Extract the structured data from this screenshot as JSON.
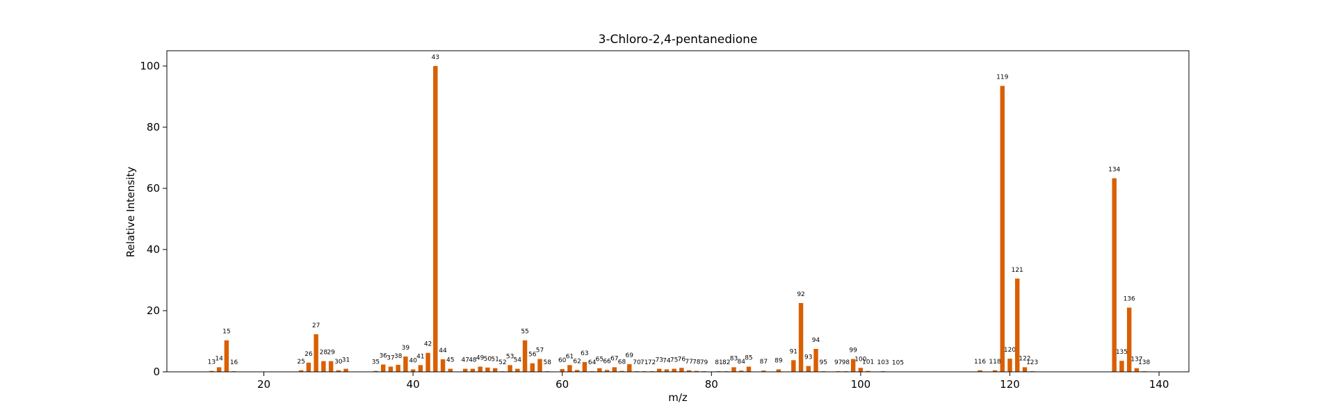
{
  "chart_data": {
    "type": "bar",
    "title": "3-Chloro-2,4-pentanedione",
    "xlabel": "m/z",
    "ylabel": "Relative Intensity",
    "xlim": [
      7,
      144
    ],
    "ylim": [
      0,
      105
    ],
    "xticks": [
      20,
      40,
      60,
      80,
      100,
      120,
      140
    ],
    "yticks": [
      0,
      20,
      40,
      60,
      80,
      100
    ],
    "bar_color": "#d95f02",
    "grid": false,
    "x": [
      13,
      14,
      15,
      16,
      25,
      26,
      27,
      28,
      29,
      30,
      31,
      35,
      36,
      37,
      38,
      39,
      40,
      41,
      42,
      43,
      44,
      45,
      47,
      48,
      49,
      50,
      51,
      52,
      53,
      54,
      55,
      56,
      57,
      58,
      60,
      61,
      62,
      63,
      64,
      65,
      66,
      67,
      68,
      69,
      70,
      71,
      72,
      73,
      74,
      75,
      76,
      77,
      78,
      79,
      81,
      82,
      83,
      84,
      85,
      87,
      89,
      91,
      92,
      93,
      94,
      95,
      97,
      98,
      99,
      100,
      101,
      103,
      105,
      116,
      118,
      119,
      120,
      121,
      122,
      123,
      134,
      135,
      136,
      137,
      138
    ],
    "values": [
      0.3,
      1.5,
      10.3,
      0.2,
      0.5,
      3.0,
      12.3,
      3.5,
      3.5,
      0.5,
      1.0,
      0.3,
      2.4,
      1.7,
      2.3,
      5.0,
      0.8,
      2.2,
      6.2,
      100,
      4.1,
      1.0,
      1.0,
      1.0,
      1.7,
      1.4,
      1.2,
      0.2,
      2.2,
      1.0,
      10.3,
      2.8,
      4.2,
      0.2,
      0.9,
      2.2,
      0.6,
      3.2,
      0.2,
      1.2,
      0.6,
      1.5,
      0.3,
      2.5,
      0.2,
      0.2,
      0.2,
      1.0,
      0.8,
      1.0,
      1.3,
      0.5,
      0.3,
      0.2,
      0.2,
      0.2,
      1.5,
      0.4,
      1.7,
      0.4,
      0.8,
      3.8,
      22.5,
      1.9,
      7.5,
      0.2,
      0.2,
      0.2,
      4.2,
      1.3,
      0.3,
      0.2,
      0.1,
      0.5,
      0.5,
      93.5,
      4.3,
      30.5,
      1.5,
      0.2,
      63.3,
      3.6,
      21.0,
      1.2,
      0.2
    ],
    "data_labels": [
      "13",
      "14",
      "15",
      "16",
      "25",
      "26",
      "27",
      "28",
      "29",
      "30",
      "31",
      "35",
      "36",
      "37",
      "38",
      "39",
      "40",
      "41",
      "42",
      "43",
      "44",
      "45",
      "47",
      "48",
      "49",
      "50",
      "51",
      "52",
      "53",
      "54",
      "55",
      "56",
      "57",
      "58",
      "60",
      "61",
      "62",
      "63",
      "64",
      "65",
      "66",
      "67",
      "68",
      "69",
      "70",
      "71",
      "72",
      "73",
      "74",
      "75",
      "76",
      "77",
      "78",
      "79",
      "81",
      "82",
      "83",
      "84",
      "85",
      "87",
      "89",
      "91",
      "92",
      "93",
      "94",
      "95",
      "97",
      "98",
      "99",
      "100",
      "101",
      "103",
      "105",
      "116",
      "118",
      "119",
      "120",
      "121",
      "122",
      "123",
      "134",
      "135",
      "136",
      "137",
      "138"
    ]
  }
}
